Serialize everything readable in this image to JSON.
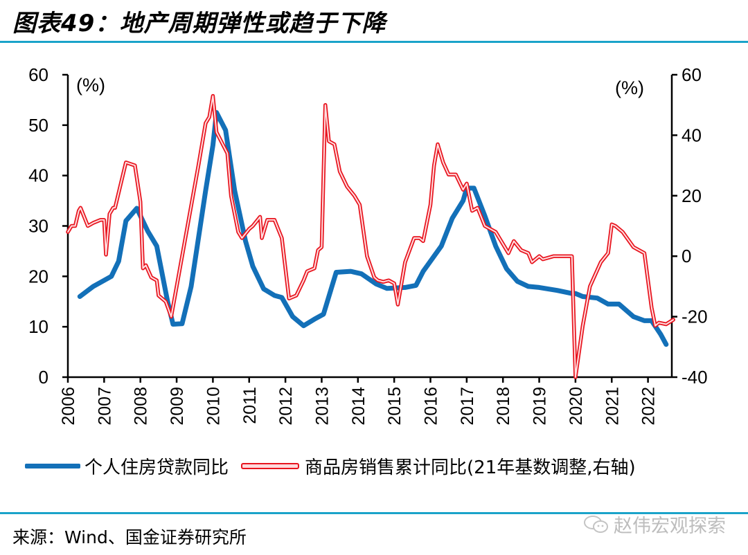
{
  "page": {
    "title": "图表49：地产周期弹性或趋于下降",
    "source": "来源：Wind、国金证券研究所",
    "watermark": "赵伟宏观探索",
    "watermark_icon": "wechat-icon"
  },
  "legend": [
    {
      "label": "个人住房贷款同比",
      "color": "#1370b8",
      "style": "solid-thick"
    },
    {
      "label": "商品房销售累计同比(21年基数调整,右轴)",
      "color": "#e8141e",
      "style": "double-line"
    }
  ],
  "chart_data": {
    "type": "line",
    "title": "地产周期弹性或趋于下降",
    "xlabel": "",
    "ylabel_left": "(%)",
    "ylabel_right": "(%)",
    "x_ticks": [
      "2006",
      "2007",
      "2008",
      "2009",
      "2010",
      "2011",
      "2012",
      "2013",
      "2014",
      "2015",
      "2016",
      "2017",
      "2018",
      "2019",
      "2020",
      "2021",
      "2022"
    ],
    "xlim": [
      2006,
      2022.67
    ],
    "ylim_left": [
      0,
      60
    ],
    "yticks_left": [
      0,
      10,
      20,
      30,
      40,
      50,
      60
    ],
    "ylim_right": [
      -40,
      60
    ],
    "yticks_right": [
      -40,
      -20,
      0,
      20,
      40,
      60
    ],
    "grid": false,
    "legend_position": "bottom",
    "series": [
      {
        "name": "个人住房贷款同比",
        "axis": "left",
        "color": "#1370b8",
        "x": [
          2006.33,
          2006.7,
          2007.0,
          2007.2,
          2007.4,
          2007.6,
          2007.9,
          2008.2,
          2008.45,
          2008.75,
          2008.9,
          2009.15,
          2009.4,
          2009.8,
          2010.0,
          2010.1,
          2010.35,
          2010.6,
          2010.9,
          2011.1,
          2011.4,
          2011.7,
          2011.9,
          2012.2,
          2012.5,
          2012.8,
          2013.05,
          2013.4,
          2013.8,
          2014.1,
          2014.5,
          2014.8,
          2015.3,
          2015.6,
          2015.8,
          2016.1,
          2016.3,
          2016.6,
          2016.9,
          2017.0,
          2017.2,
          2017.5,
          2017.8,
          2018.1,
          2018.4,
          2018.7,
          2019.0,
          2019.5,
          2019.9,
          2020.0,
          2020.2,
          2020.6,
          2020.9,
          2021.2,
          2021.6,
          2021.9,
          2022.1,
          2022.35,
          2022.5
        ],
        "values": [
          16,
          18,
          19.2,
          20,
          23,
          31,
          33.5,
          29,
          26,
          15,
          10.5,
          10.6,
          18,
          37,
          46,
          52.5,
          49,
          37,
          27,
          22,
          17.5,
          16.2,
          15.8,
          12,
          10.2,
          11.5,
          12.5,
          20.8,
          21,
          20.5,
          18.5,
          17.6,
          17.8,
          18.2,
          21,
          24,
          26,
          31.5,
          35,
          37.5,
          37.5,
          32,
          26,
          21.5,
          19,
          18,
          17.8,
          17.2,
          16.6,
          16.6,
          16,
          15.7,
          14.5,
          14.5,
          12,
          11.2,
          11.2,
          8.5,
          6.5
        ]
      },
      {
        "name": "商品房销售累计同比(21年基数调整,右轴)",
        "axis": "right",
        "color": "#e8141e",
        "x": [
          2006.0,
          2006.1,
          2006.2,
          2006.3,
          2006.35,
          2006.55,
          2006.7,
          2006.9,
          2007.0,
          2007.05,
          2007.15,
          2007.25,
          2007.3,
          2007.6,
          2007.85,
          2008.0,
          2008.07,
          2008.15,
          2008.3,
          2008.45,
          2008.5,
          2008.7,
          2008.85,
          2009.0,
          2009.3,
          2009.6,
          2009.8,
          2009.9,
          2010.0,
          2010.1,
          2010.4,
          2010.5,
          2010.7,
          2010.8,
          2011.0,
          2011.1,
          2011.3,
          2011.35,
          2011.5,
          2011.7,
          2011.8,
          2011.9,
          2012.1,
          2012.3,
          2012.5,
          2012.6,
          2012.8,
          2012.9,
          2013.0,
          2013.1,
          2013.2,
          2013.35,
          2013.5,
          2013.7,
          2013.9,
          2014.05,
          2014.25,
          2014.45,
          2014.55,
          2014.7,
          2014.85,
          2015.0,
          2015.1,
          2015.3,
          2015.55,
          2015.7,
          2015.8,
          2016.0,
          2016.1,
          2016.2,
          2016.35,
          2016.5,
          2016.7,
          2016.9,
          2017.0,
          2017.15,
          2017.3,
          2017.5,
          2017.8,
          2018.0,
          2018.15,
          2018.3,
          2018.5,
          2018.7,
          2018.8,
          2019.0,
          2019.1,
          2019.4,
          2019.8,
          2019.9,
          2020.0,
          2020.2,
          2020.4,
          2020.7,
          2020.9,
          2021.0,
          2021.1,
          2021.3,
          2021.6,
          2021.9,
          2022.1,
          2022.2,
          2022.3,
          2022.5,
          2022.7
        ],
        "values": [
          8,
          10,
          10,
          15,
          16,
          10,
          11,
          12,
          12,
          0.5,
          14,
          16,
          16,
          31,
          30,
          18,
          -4,
          -3,
          -7,
          -8,
          -13,
          -15,
          -20,
          -10,
          10,
          30,
          44,
          46,
          53,
          41,
          34,
          20,
          8,
          6,
          9,
          10,
          13,
          6,
          12,
          12,
          9,
          6,
          -14,
          -13,
          -8,
          -5,
          -4,
          2,
          3,
          50,
          38,
          37,
          28,
          23,
          20,
          17,
          0,
          -7,
          -8,
          -8.5,
          -8,
          -9,
          -16,
          -2,
          6,
          6,
          5,
          17,
          30,
          37,
          31,
          27,
          27,
          22,
          24,
          15,
          16,
          10,
          8,
          4,
          1,
          5,
          2,
          1,
          -2,
          0,
          -1,
          0,
          0,
          0,
          -40,
          -23,
          -10,
          -2,
          1,
          10.5,
          10,
          8,
          3,
          1,
          -17,
          -23,
          -22,
          -22.5,
          -21
        ]
      }
    ]
  }
}
